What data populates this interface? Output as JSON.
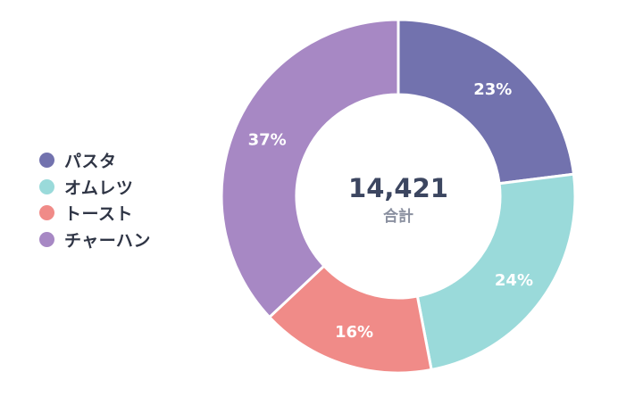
{
  "chart_data": {
    "type": "pie",
    "variant": "donut",
    "categories": [
      "パスタ",
      "オムレツ",
      "トースト",
      "チャーハン"
    ],
    "values": [
      23,
      24,
      16,
      37
    ],
    "value_labels": [
      "23%",
      "24%",
      "16%",
      "37%"
    ],
    "colors": [
      "#7272ae",
      "#9adada",
      "#f08b88",
      "#a788c4"
    ],
    "legend_position": "left",
    "center": {
      "value": "14,421",
      "label": "合計"
    }
  }
}
